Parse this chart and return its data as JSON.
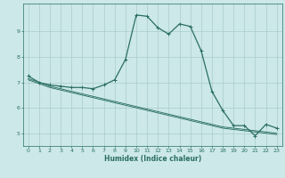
{
  "xlabel": "Humidex (Indice chaleur)",
  "bg_color": "#cce8e8",
  "grid_color": "#aacccc",
  "line_color": "#2a6e64",
  "xlim": [
    -0.5,
    23.5
  ],
  "ylim": [
    4.5,
    10.1
  ],
  "yticks": [
    5,
    6,
    7,
    8,
    9
  ],
  "xticks": [
    0,
    1,
    2,
    3,
    4,
    5,
    6,
    7,
    8,
    9,
    10,
    11,
    12,
    13,
    14,
    15,
    16,
    17,
    18,
    19,
    20,
    21,
    22,
    23
  ],
  "series1_x": [
    0,
    1,
    2,
    3,
    4,
    5,
    6,
    7,
    8,
    9,
    10,
    11,
    12,
    13,
    14,
    15,
    16,
    17,
    18,
    19,
    20,
    21,
    22,
    23
  ],
  "series1_y": [
    7.25,
    7.0,
    6.9,
    6.85,
    6.8,
    6.8,
    6.75,
    6.9,
    7.1,
    7.9,
    9.65,
    9.6,
    9.15,
    8.9,
    9.3,
    9.2,
    8.25,
    6.65,
    5.9,
    5.3,
    5.3,
    4.9,
    5.35,
    5.2
  ],
  "series2_x": [
    0,
    1,
    2,
    3,
    4,
    5,
    6,
    7,
    8,
    9,
    10,
    11,
    12,
    13,
    14,
    15,
    16,
    17,
    18,
    19,
    20,
    21,
    22,
    23
  ],
  "series2_y": [
    7.1,
    6.95,
    6.8,
    6.7,
    6.6,
    6.5,
    6.4,
    6.3,
    6.2,
    6.1,
    6.0,
    5.9,
    5.8,
    5.7,
    5.6,
    5.5,
    5.4,
    5.3,
    5.2,
    5.15,
    5.1,
    5.05,
    5.0,
    4.95
  ],
  "series3_x": [
    0,
    1,
    2,
    3,
    4,
    5,
    6,
    7,
    8,
    9,
    10,
    11,
    12,
    13,
    14,
    15,
    16,
    17,
    18,
    19,
    20,
    21,
    22,
    23
  ],
  "series3_y": [
    7.15,
    7.0,
    6.85,
    6.75,
    6.65,
    6.55,
    6.45,
    6.35,
    6.25,
    6.15,
    6.05,
    5.95,
    5.85,
    5.75,
    5.65,
    5.55,
    5.45,
    5.35,
    5.25,
    5.2,
    5.15,
    5.1,
    5.05,
    5.0
  ]
}
